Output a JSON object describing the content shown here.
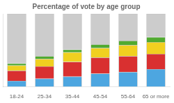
{
  "chart_data": {
    "type": "bar",
    "title": "Percentage of vote by age group",
    "categories": [
      "18-24",
      "25-34",
      "35-44",
      "45-54",
      "55-64",
      "65 or more"
    ],
    "series": [
      {
        "color": "#4da6e0",
        "values": [
          8,
          11,
          14,
          18,
          20,
          24
        ]
      },
      {
        "color": "#d93030",
        "values": [
          14,
          17,
          20,
          22,
          22,
          21
        ]
      },
      {
        "color": "#f0d020",
        "values": [
          7,
          10,
          13,
          13,
          15,
          16
        ]
      },
      {
        "color": "#50aa30",
        "values": [
          3,
          4,
          4,
          5,
          6,
          7
        ]
      },
      {
        "color": "#cccccc",
        "values": [
          68,
          58,
          49,
          42,
          37,
          32
        ]
      }
    ],
    "stacked": true,
    "ylim": [
      0,
      100
    ],
    "yticks": [],
    "grid": false,
    "tick_labels": "x"
  }
}
